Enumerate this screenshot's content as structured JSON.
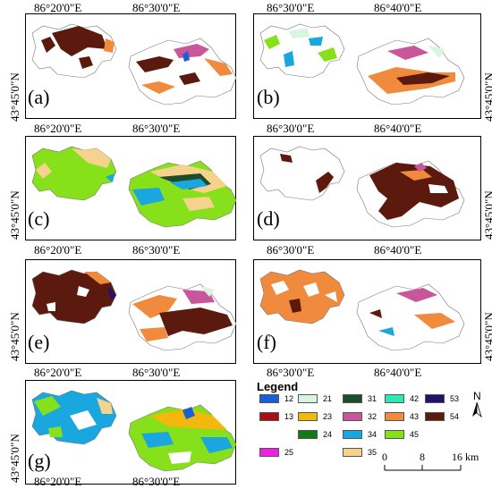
{
  "lon_labels": [
    "86°20'0\"E",
    "86°30'0\"E",
    "86°40'0\"E"
  ],
  "lat_labels": [
    "43°45'0\"N",
    "43°45'0\"N"
  ],
  "panels": [
    {
      "id": "a",
      "label": "(a)"
    },
    {
      "id": "b",
      "label": "(b)"
    },
    {
      "id": "c",
      "label": "(c)"
    },
    {
      "id": "d",
      "label": "(d)"
    },
    {
      "id": "e",
      "label": "(e)"
    },
    {
      "id": "f",
      "label": "(f)"
    },
    {
      "id": "g",
      "label": "(g)"
    }
  ],
  "legend": {
    "title": "Legend",
    "items": [
      {
        "code": "12",
        "color": "#1b5fd6"
      },
      {
        "code": "13",
        "color": "#a50f15"
      },
      {
        "code": "21",
        "color": "#d9f5e0"
      },
      {
        "code": "23",
        "color": "#f2b90c"
      },
      {
        "code": "24",
        "color": "#137a1a"
      },
      {
        "code": "25",
        "color": "#f01ee0"
      },
      {
        "code": "31",
        "color": "#1e4d2b"
      },
      {
        "code": "32",
        "color": "#c9569a"
      },
      {
        "code": "34",
        "color": "#1aa7e0"
      },
      {
        "code": "35",
        "color": "#f5d38c"
      },
      {
        "code": "42",
        "color": "#2de8b0"
      },
      {
        "code": "43",
        "color": "#f08a3c"
      },
      {
        "code": "45",
        "color": "#86e01a"
      },
      {
        "code": "53",
        "color": "#25106a"
      },
      {
        "code": "54",
        "color": "#5c1a0e"
      }
    ],
    "north": "N",
    "scale": {
      "ticks": [
        "0",
        "8",
        "16 km"
      ]
    }
  }
}
